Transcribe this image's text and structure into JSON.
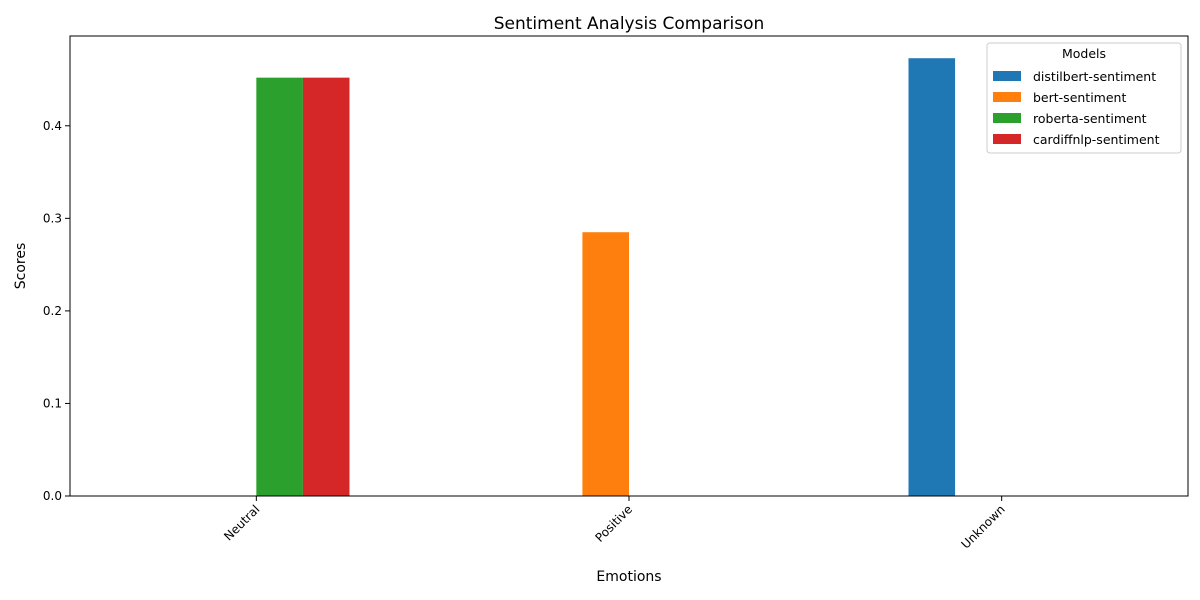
{
  "chart_data": {
    "type": "bar",
    "title": "Sentiment Analysis Comparison",
    "xlabel": "Emotions",
    "ylabel": "Scores",
    "categories": [
      "Neutral",
      "Positive",
      "Unknown"
    ],
    "series": [
      {
        "name": "distilbert-sentiment",
        "color": "#1f77b4",
        "values": [
          0,
          0,
          0.473
        ]
      },
      {
        "name": "bert-sentiment",
        "color": "#ff7f0e",
        "values": [
          0,
          0.285,
          0
        ]
      },
      {
        "name": "roberta-sentiment",
        "color": "#2ca02c",
        "values": [
          0.452,
          0,
          0
        ]
      },
      {
        "name": "cardiffnlp-sentiment",
        "color": "#d62728",
        "values": [
          0.452,
          0,
          0
        ]
      }
    ],
    "ylim": [
      0,
      0.497
    ],
    "yticks": [
      0.0,
      0.1,
      0.2,
      0.3,
      0.4
    ],
    "ytick_labels": [
      "0.0",
      "0.1",
      "0.2",
      "0.3",
      "0.4"
    ],
    "legend": {
      "title": "Models",
      "placement": "top-right"
    },
    "grid": false
  }
}
